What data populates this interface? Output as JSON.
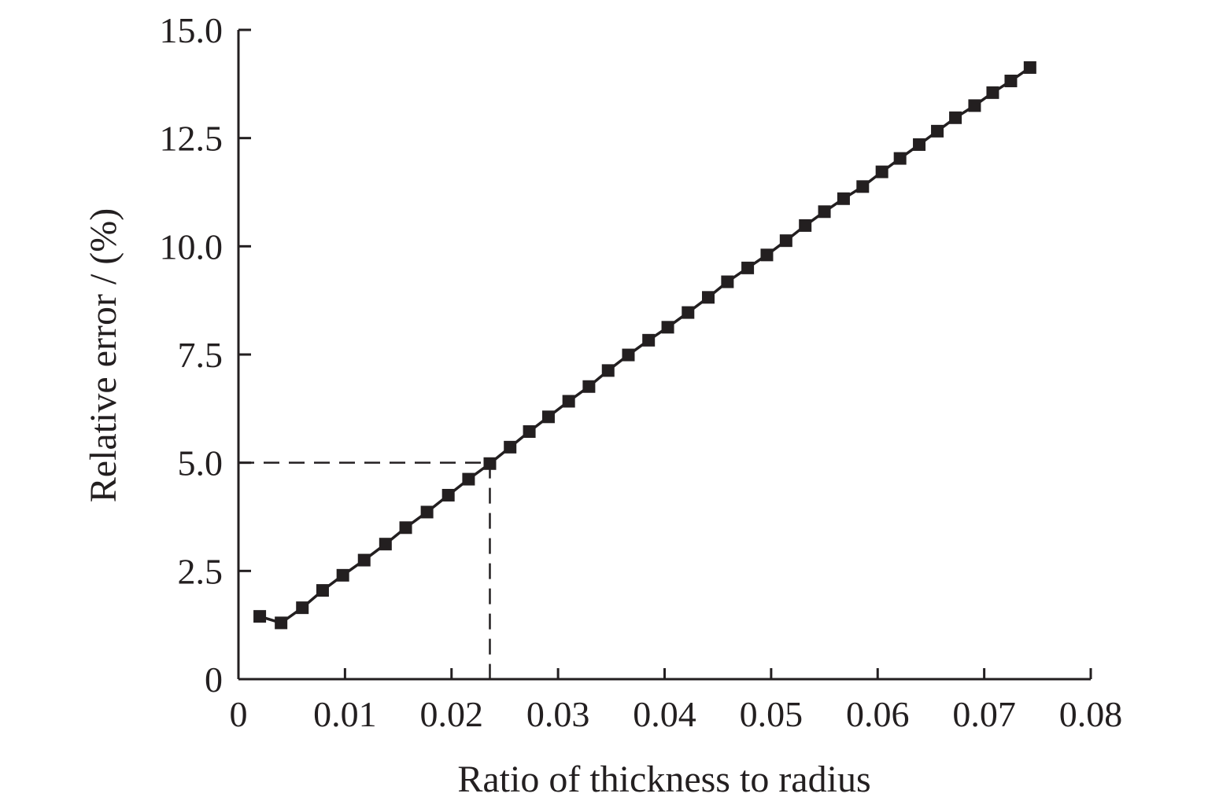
{
  "chart_data": {
    "type": "line",
    "title": "",
    "xlabel": "Ratio of thickness to radius",
    "ylabel": "Relative error / (%)",
    "xlim": [
      0,
      0.08
    ],
    "ylim": [
      0,
      15
    ],
    "xticks": [
      0,
      0.01,
      0.02,
      0.03,
      0.04,
      0.05,
      0.06,
      0.07,
      0.08
    ],
    "xtick_labels": [
      "0",
      "0.01",
      "0.02",
      "0.03",
      "0.04",
      "0.05",
      "0.06",
      "0.07",
      "0.08"
    ],
    "yticks": [
      0,
      2.5,
      5,
      7.5,
      10,
      12.5,
      15
    ],
    "ytick_labels": [
      "0",
      "2.5",
      "5.0",
      "7.5",
      "10.0",
      "12.5",
      "15.0"
    ],
    "grid": false,
    "legend": "none",
    "series": [
      {
        "marker": "square",
        "color": "#231f20",
        "x": [
          0.002,
          0.004,
          0.006,
          0.0079,
          0.0098,
          0.0118,
          0.0138,
          0.0157,
          0.0177,
          0.0197,
          0.0216,
          0.0236,
          0.0255,
          0.0273,
          0.0291,
          0.031,
          0.0329,
          0.0347,
          0.0366,
          0.0385,
          0.0403,
          0.0422,
          0.0441,
          0.0459,
          0.0478,
          0.0496,
          0.0514,
          0.0532,
          0.055,
          0.0568,
          0.0586,
          0.0604,
          0.0621,
          0.0639,
          0.0656,
          0.0673,
          0.0691,
          0.0708,
          0.0725,
          0.0743
        ],
        "y": [
          1.45,
          1.3,
          1.65,
          2.05,
          2.4,
          2.75,
          3.12,
          3.5,
          3.86,
          4.25,
          4.62,
          4.98,
          5.36,
          5.72,
          6.06,
          6.42,
          6.76,
          7.13,
          7.49,
          7.83,
          8.13,
          8.47,
          8.82,
          9.18,
          9.5,
          9.8,
          10.13,
          10.48,
          10.8,
          11.1,
          11.38,
          11.72,
          12.03,
          12.35,
          12.66,
          12.97,
          13.25,
          13.55,
          13.82,
          14.13
        ]
      }
    ],
    "reference_lines": {
      "point": {
        "x": 0.0236,
        "y": 5.0
      },
      "style": "dashed"
    }
  }
}
